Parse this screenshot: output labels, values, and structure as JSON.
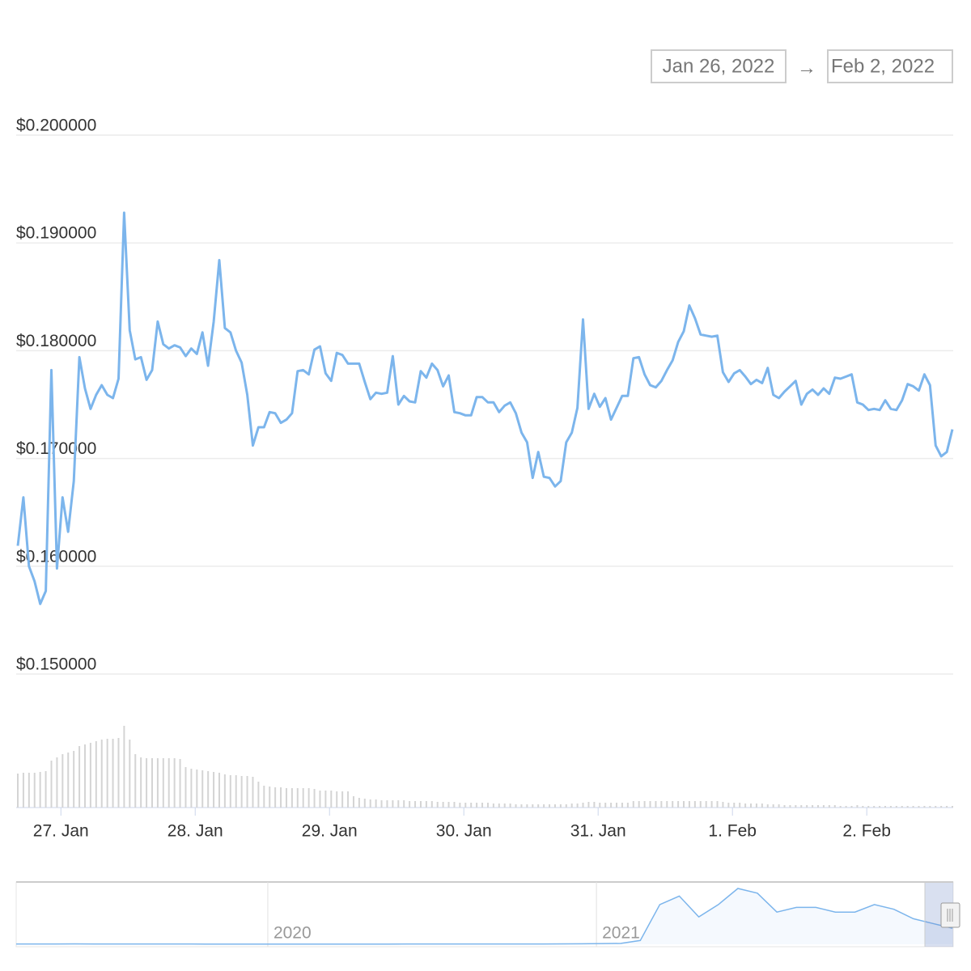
{
  "chart_data": {
    "type": "line",
    "date_range": {
      "from": "Jan 26, 2022",
      "arrow": "→",
      "to": "Feb 2, 2022"
    },
    "color": "#7cb5ec",
    "values": [
      0.1619,
      0.1664,
      0.16,
      0.1586,
      0.1565,
      0.1577,
      0.1782,
      0.1598,
      0.1664,
      0.1632,
      0.1679,
      0.1794,
      0.1765,
      0.1746,
      0.1759,
      0.1768,
      0.1759,
      0.1756,
      0.1774,
      0.1928,
      0.1819,
      0.1792,
      0.1794,
      0.1773,
      0.1782,
      0.1827,
      0.1806,
      0.1802,
      0.1805,
      0.1803,
      0.1795,
      0.1802,
      0.1797,
      0.1817,
      0.1786,
      0.1827,
      0.1884,
      0.1821,
      0.1817,
      0.18,
      0.1789,
      0.1759,
      0.1712,
      0.1729,
      0.1729,
      0.1743,
      0.1742,
      0.1733,
      0.1736,
      0.1742,
      0.1781,
      0.1782,
      0.1778,
      0.1801,
      0.1804,
      0.1779,
      0.1772,
      0.1798,
      0.1796,
      0.1788,
      0.1788,
      0.1788,
      0.1771,
      0.1755,
      0.1761,
      0.176,
      0.1761,
      0.1795,
      0.175,
      0.1758,
      0.1753,
      0.1752,
      0.1781,
      0.1775,
      0.1788,
      0.1782,
      0.1767,
      0.1777,
      0.1743,
      0.1742,
      0.174,
      0.174,
      0.1757,
      0.1757,
      0.1752,
      0.1752,
      0.1743,
      0.1749,
      0.1752,
      0.1742,
      0.1724,
      0.1715,
      0.1682,
      0.1706,
      0.1683,
      0.1682,
      0.1674,
      0.1679,
      0.1715,
      0.1724,
      0.1747,
      0.1829,
      0.1746,
      0.176,
      0.1748,
      0.1756,
      0.1736,
      0.1747,
      0.1758,
      0.1758,
      0.1793,
      0.1794,
      0.1778,
      0.1768,
      0.1766,
      0.1772,
      0.1782,
      0.1791,
      0.1808,
      0.1818,
      0.1842,
      0.183,
      0.1815,
      0.1814,
      0.1813,
      0.1814,
      0.178,
      0.1771,
      0.1779,
      0.1782,
      0.1776,
      0.1769,
      0.1773,
      0.177,
      0.1784,
      0.1759,
      0.1756,
      0.1762,
      0.1767,
      0.1772,
      0.175,
      0.176,
      0.1764,
      0.1759,
      0.1765,
      0.176,
      0.1775,
      0.1774,
      0.1776,
      0.1778,
      0.1752,
      0.175,
      0.1745,
      0.1746,
      0.1745,
      0.1754,
      0.1746,
      0.1745,
      0.1754,
      0.1769,
      0.1767,
      0.1763,
      0.1778,
      0.1768,
      0.1712,
      0.1702,
      0.1706,
      0.1727
    ],
    "xlim": [
      0,
      167
    ],
    "xticks": [
      {
        "value": 7.7,
        "label": "27. Jan"
      },
      {
        "value": 31.7,
        "label": "28. Jan"
      },
      {
        "value": 55.7,
        "label": "29. Jan"
      },
      {
        "value": 79.7,
        "label": "30. Jan"
      },
      {
        "value": 103.7,
        "label": "31. Jan"
      },
      {
        "value": 127.7,
        "label": "1. Feb"
      },
      {
        "value": 151.7,
        "label": "2. Feb"
      }
    ],
    "ylim": [
      0.15,
      0.2
    ],
    "yticks": [
      {
        "value": 0.15,
        "label": "$0.150000"
      },
      {
        "value": 0.16,
        "label": "$0.160000"
      },
      {
        "value": 0.17,
        "label": "$0.170000"
      },
      {
        "value": 0.18,
        "label": "$0.180000"
      },
      {
        "value": 0.19,
        "label": "$0.190000"
      },
      {
        "value": 0.2,
        "label": "$0.200000"
      }
    ],
    "grid": true,
    "volume_color": "#d4d4d4",
    "volumes": [
      42,
      43,
      43,
      43,
      44,
      45,
      58,
      62,
      66,
      68,
      70,
      76,
      78,
      80,
      82,
      84,
      85,
      85,
      86,
      101,
      84,
      66,
      62,
      61,
      61,
      61,
      61,
      61,
      61,
      60,
      50,
      48,
      47,
      46,
      45,
      44,
      43,
      41,
      40,
      40,
      39,
      39,
      38,
      32,
      27,
      26,
      25,
      25,
      24,
      24,
      24,
      24,
      24,
      23,
      21,
      21,
      21,
      20,
      20,
      20,
      14,
      12,
      11,
      10,
      10,
      9,
      9,
      9,
      9,
      9,
      8,
      8,
      8,
      8,
      8,
      7,
      7,
      7,
      7,
      6,
      6,
      6,
      6,
      6,
      6,
      5,
      5,
      5,
      5,
      4,
      4,
      4,
      4,
      4,
      4,
      4,
      4,
      4,
      4,
      5,
      5,
      6,
      7,
      7,
      6,
      6,
      6,
      6,
      6,
      6,
      8,
      8,
      8,
      8,
      8,
      8,
      8,
      8,
      8,
      8,
      8,
      8,
      8,
      8,
      8,
      8,
      7,
      6,
      6,
      6,
      5,
      5,
      5,
      5,
      4,
      4,
      4,
      3,
      3,
      3,
      3,
      3,
      3,
      3,
      3,
      3,
      3,
      2,
      2,
      2,
      3,
      2,
      2,
      2,
      2,
      2,
      2,
      2,
      2,
      2,
      2,
      2,
      2,
      2,
      2,
      2,
      2,
      2
    ],
    "navigator": {
      "values": [
        0.003,
        0.003,
        0.003,
        0.004,
        0.003,
        0.003,
        0.003,
        0.003,
        0.003,
        0.003,
        0.002,
        0.002,
        0.002,
        0.002,
        0.002,
        0.002,
        0.002,
        0.002,
        0.002,
        0.002,
        0.003,
        0.003,
        0.003,
        0.003,
        0.003,
        0.003,
        0.003,
        0.003,
        0.004,
        0.005,
        0.008,
        0.009,
        0.04,
        0.42,
        0.51,
        0.29,
        0.42,
        0.59,
        0.54,
        0.34,
        0.39,
        0.39,
        0.34,
        0.34,
        0.42,
        0.37,
        0.27,
        0.22,
        0.17
      ],
      "xlim": [
        0,
        48
      ],
      "xticks": [
        {
          "value": 12.9,
          "label": "2020"
        },
        {
          "value": 29.75,
          "label": "2021"
        }
      ]
    }
  }
}
